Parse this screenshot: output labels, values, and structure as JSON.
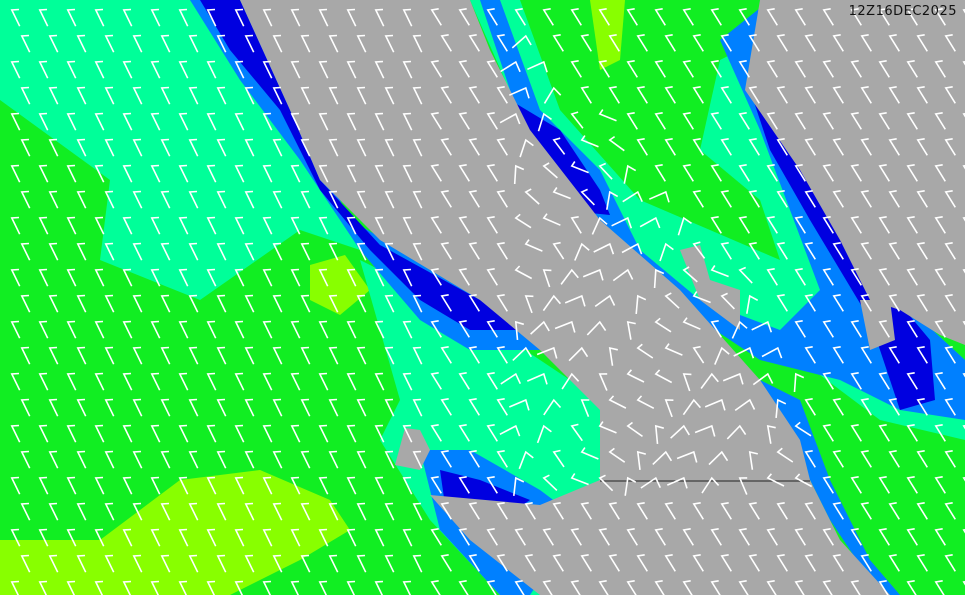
{
  "map": {
    "timestamp": "12Z16DEC2025",
    "colors": {
      "land": "#a8a8a8",
      "sea_green": "#11ee22",
      "sea_yellow_green": "#88ff00",
      "sea_aquamarine": "#00ff99",
      "sea_blue": "#0080ff",
      "sea_dark_blue": "#0000e0",
      "wind_barb": "#ffffff"
    }
  }
}
